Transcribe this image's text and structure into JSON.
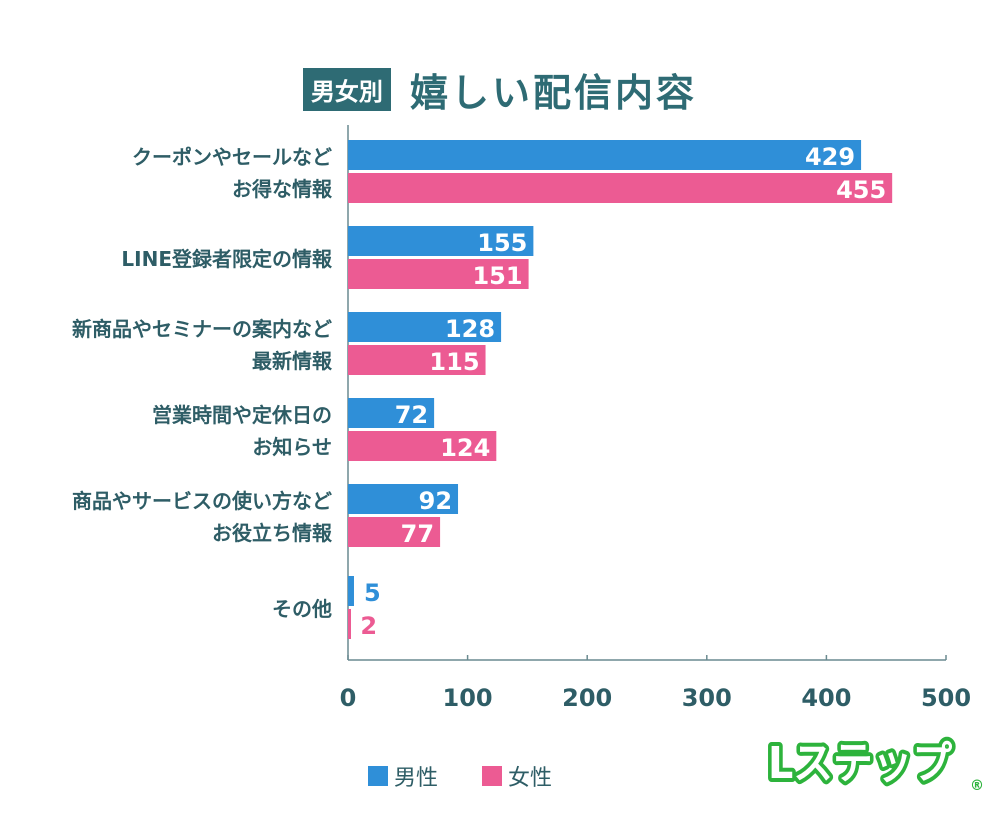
{
  "title": {
    "badge": "男女別",
    "main": "嬉しい配信内容"
  },
  "colors": {
    "male": "#2f8fd8",
    "female": "#ec5b93",
    "text": "#2e6b74",
    "logo": "#2db33c"
  },
  "logo": {
    "text": "Lステップ"
  },
  "chart_data": {
    "type": "bar",
    "orientation": "horizontal",
    "categories": [
      [
        "クーポンやセールなど",
        "お得な情報"
      ],
      [
        "LINE登録者限定の情報"
      ],
      [
        "新商品やセミナーの案内など",
        "最新情報"
      ],
      [
        "営業時間や定休日の",
        "お知らせ"
      ],
      [
        "商品やサービスの使い方など",
        "お役立ち情報"
      ],
      [
        "その他"
      ]
    ],
    "series": [
      {
        "name": "男性",
        "values": [
          429,
          155,
          128,
          72,
          92,
          5
        ]
      },
      {
        "name": "女性",
        "values": [
          455,
          151,
          115,
          124,
          77,
          2
        ]
      }
    ],
    "xlim": [
      0,
      500
    ],
    "xticks": [
      0,
      100,
      200,
      300,
      400,
      500
    ],
    "legend": "bottom",
    "grid": false
  }
}
